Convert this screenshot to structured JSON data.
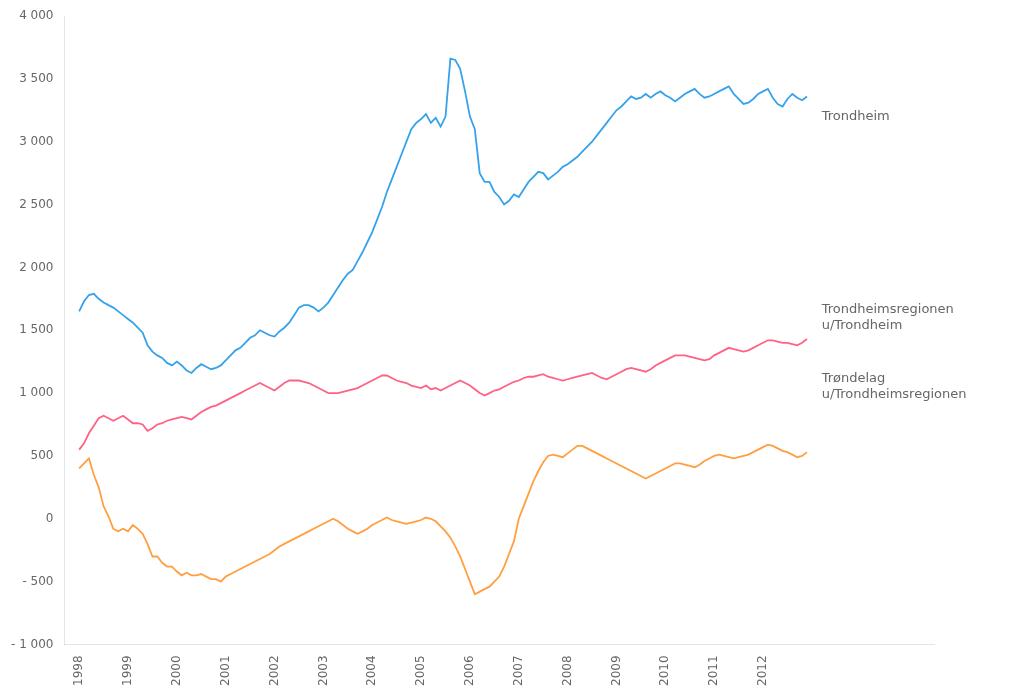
{
  "chart_data": {
    "type": "line",
    "x": [
      1998,
      1998.1,
      1998.2,
      1998.3,
      1998.4,
      1998.5,
      1998.6,
      1998.7,
      1998.8,
      1998.9,
      1999,
      1999.1,
      1999.2,
      1999.3,
      1999.4,
      1999.5,
      1999.6,
      1999.7,
      1999.8,
      1999.9,
      2000,
      2000.1,
      2000.2,
      2000.3,
      2000.4,
      2000.5,
      2000.6,
      2000.7,
      2000.8,
      2000.9,
      2001,
      2001.1,
      2001.2,
      2001.3,
      2001.4,
      2001.5,
      2001.6,
      2001.7,
      2001.8,
      2001.9,
      2002,
      2002.1,
      2002.2,
      2002.3,
      2002.4,
      2002.5,
      2002.6,
      2002.7,
      2002.8,
      2002.9,
      2003,
      2003.1,
      2003.2,
      2003.3,
      2003.4,
      2003.5,
      2003.6,
      2003.7,
      2003.8,
      2003.9,
      2004,
      2004.1,
      2004.2,
      2004.3,
      2004.4,
      2004.5,
      2004.6,
      2004.7,
      2004.8,
      2004.9,
      2005,
      2005.1,
      2005.2,
      2005.3,
      2005.4,
      2005.5,
      2005.6,
      2005.7,
      2005.8,
      2005.9,
      2006,
      2006.1,
      2006.2,
      2006.3,
      2006.4,
      2006.5,
      2006.6,
      2006.7,
      2006.8,
      2006.9,
      2007,
      2007.1,
      2007.2,
      2007.3,
      2007.4,
      2007.5,
      2007.6,
      2007.7,
      2007.8,
      2007.9,
      2008,
      2008.1,
      2008.2,
      2008.3,
      2008.4,
      2008.5,
      2008.6,
      2008.7,
      2008.8,
      2008.9,
      2009,
      2009.1,
      2009.2,
      2009.3,
      2009.4,
      2009.5,
      2009.6,
      2009.7,
      2009.8,
      2009.9,
      2010,
      2010.1,
      2010.2,
      2010.3,
      2010.4,
      2010.5,
      2010.6,
      2010.7,
      2010.8,
      2010.9,
      2011,
      2011.1,
      2011.2,
      2011.3,
      2011.4,
      2011.5,
      2011.6,
      2011.7,
      2011.8,
      2011.9,
      2012,
      2012.1,
      2012.2,
      2012.3,
      2012.4,
      2012.5,
      2012.6,
      2012.7,
      2012.8,
      2012.9
    ],
    "series": [
      {
        "values": [
          1650,
          1730,
          1780,
          1790,
          1750,
          1720,
          1700,
          1680,
          1650,
          1620,
          1590,
          1560,
          1520,
          1480,
          1380,
          1330,
          1300,
          1280,
          1240,
          1220,
          1250,
          1220,
          1180,
          1160,
          1200,
          1230,
          1210,
          1190,
          1200,
          1220,
          1260,
          1300,
          1340,
          1360,
          1400,
          1440,
          1460,
          1500,
          1480,
          1460,
          1450,
          1490,
          1520,
          1560,
          1620,
          1680,
          1700,
          1700,
          1680,
          1650,
          1680,
          1720,
          1780,
          1840,
          1900,
          1950,
          1980,
          2050,
          2120,
          2200,
          2280,
          2380,
          2480,
          2600,
          2700,
          2800,
          2900,
          3000,
          3100,
          3150,
          3180,
          3220,
          3150,
          3190,
          3120,
          3200,
          3660,
          3650,
          3580,
          3400,
          3200,
          3100,
          2750,
          2680,
          2680,
          2600,
          2560,
          2500,
          2530,
          2580,
          2560,
          2620,
          2680,
          2720,
          2760,
          2750,
          2700,
          2730,
          2760,
          2800,
          2820,
          2850,
          2880,
          2920,
          2960,
          3000,
          3050,
          3100,
          3150,
          3200,
          3250,
          3280,
          3320,
          3360,
          3340,
          3350,
          3380,
          3350,
          3380,
          3400,
          3370,
          3350,
          3320,
          3350,
          3380,
          3400,
          3420,
          3380,
          3350,
          3360,
          3380,
          3400,
          3420,
          3440,
          3380,
          3340,
          3300,
          3310,
          3340,
          3380,
          3400,
          3420,
          3350,
          3300,
          3280,
          3340,
          3380,
          3350,
          3330,
          3360
        ]
      },
      {
        "values": [
          550,
          600,
          680,
          740,
          800,
          820,
          800,
          780,
          800,
          820,
          790,
          760,
          760,
          750,
          700,
          720,
          750,
          760,
          780,
          790,
          800,
          810,
          800,
          790,
          820,
          850,
          870,
          890,
          900,
          920,
          940,
          960,
          980,
          1000,
          1020,
          1040,
          1060,
          1080,
          1060,
          1040,
          1020,
          1050,
          1080,
          1100,
          1100,
          1100,
          1090,
          1080,
          1060,
          1040,
          1020,
          1000,
          1000,
          1000,
          1010,
          1020,
          1030,
          1040,
          1060,
          1080,
          1100,
          1120,
          1140,
          1140,
          1120,
          1100,
          1090,
          1080,
          1060,
          1050,
          1040,
          1060,
          1030,
          1040,
          1020,
          1040,
          1060,
          1080,
          1100,
          1080,
          1060,
          1030,
          1000,
          980,
          1000,
          1020,
          1030,
          1050,
          1070,
          1090,
          1100,
          1120,
          1130,
          1130,
          1140,
          1150,
          1130,
          1120,
          1110,
          1100,
          1110,
          1120,
          1130,
          1140,
          1150,
          1160,
          1140,
          1120,
          1110,
          1130,
          1150,
          1170,
          1190,
          1200,
          1190,
          1180,
          1170,
          1190,
          1220,
          1240,
          1260,
          1280,
          1300,
          1300,
          1300,
          1290,
          1280,
          1270,
          1260,
          1270,
          1300,
          1320,
          1340,
          1360,
          1350,
          1340,
          1330,
          1340,
          1360,
          1380,
          1400,
          1420,
          1420,
          1410,
          1400,
          1400,
          1390,
          1380,
          1400,
          1430
        ]
      },
      {
        "values": [
          400,
          440,
          480,
          350,
          250,
          100,
          20,
          -80,
          -100,
          -80,
          -100,
          -50,
          -80,
          -120,
          -200,
          -300,
          -300,
          -350,
          -380,
          -380,
          -420,
          -450,
          -430,
          -450,
          -450,
          -440,
          -460,
          -480,
          -480,
          -500,
          -460,
          -440,
          -420,
          -400,
          -380,
          -360,
          -340,
          -320,
          -300,
          -280,
          -250,
          -220,
          -200,
          -180,
          -160,
          -140,
          -120,
          -100,
          -80,
          -60,
          -40,
          -20,
          0,
          -20,
          -50,
          -80,
          -100,
          -120,
          -100,
          -80,
          -50,
          -30,
          -10,
          10,
          -10,
          -20,
          -30,
          -40,
          -30,
          -20,
          -10,
          10,
          0,
          -20,
          -60,
          -100,
          -150,
          -220,
          -300,
          -400,
          -500,
          -600,
          -580,
          -560,
          -540,
          -500,
          -460,
          -380,
          -280,
          -180,
          0,
          100,
          200,
          300,
          380,
          450,
          500,
          510,
          500,
          490,
          520,
          550,
          580,
          580,
          560,
          540,
          520,
          500,
          480,
          460,
          440,
          420,
          400,
          380,
          360,
          340,
          320,
          340,
          360,
          380,
          400,
          420,
          440,
          440,
          430,
          420,
          410,
          430,
          460,
          480,
          500,
          510,
          500,
          490,
          480,
          490,
          500,
          510,
          530,
          550,
          570,
          590,
          580,
          560,
          540,
          530,
          510,
          490,
          500,
          530
        ]
      }
    ],
    "xlim": [
      1997.7,
      2015.5
    ],
    "xticks": [
      1998,
      1999,
      2000,
      2001,
      2002,
      2003,
      2004,
      2005,
      2006,
      2007,
      2008,
      2009,
      2010,
      2011,
      2012
    ],
    "ylim": [
      -1000,
      4000
    ],
    "yticks": [
      {
        "value": -1000,
        "label": "- 1 000"
      },
      {
        "value": -500,
        "label": "- 500"
      },
      0,
      500,
      {
        "value": 1000,
        "label": "1 000"
      },
      {
        "value": 1500,
        "label": "1 500"
      },
      {
        "value": 2000,
        "label": "2 000"
      },
      {
        "value": 2500,
        "label": "2 500"
      },
      {
        "value": 3000,
        "label": "3 000"
      },
      {
        "value": 3500,
        "label": "3 500"
      },
      {
        "value": 4000,
        "label": "4 000"
      }
    ],
    "grid": false,
    "annotations": [
      {
        "text": "Trondheim",
        "x": 2013.2,
        "y": 3200
      },
      {
        "text": "Trondheimsregionen\nu/Trondheim",
        "x": 2013.2,
        "y": 1600
      },
      {
        "text": "Trøndelag\nu/Trondheimsregionen",
        "x": 2013.2,
        "y": 1050
      }
    ]
  }
}
